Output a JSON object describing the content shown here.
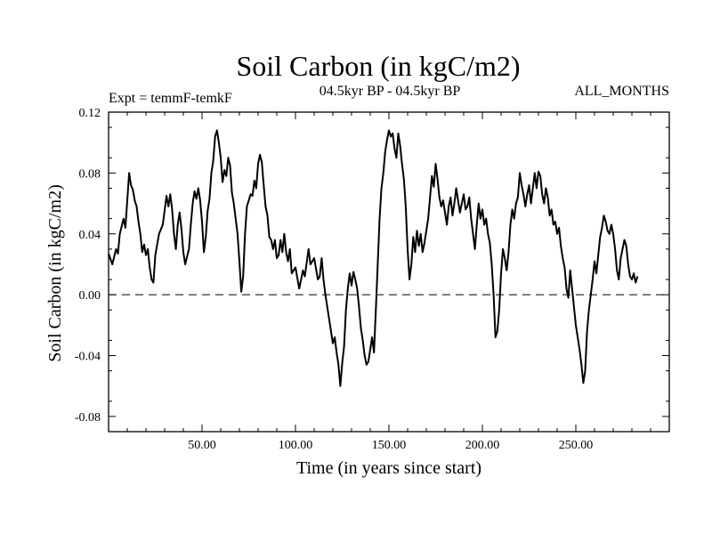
{
  "chart_data": {
    "type": "line",
    "title": "Soil Carbon (in kgC/m2)",
    "subtitle": "04.5kyr BP - 04.5kyr BP",
    "left_label": "Expt = temmF-temkF",
    "right_label": "ALL_MONTHS",
    "xlabel": "Time (in years since start)",
    "ylabel": "Soil Carbon (in kgC/m2)",
    "xlim": [
      0,
      300
    ],
    "ylim": [
      -0.09,
      0.12
    ],
    "x_ticks": [
      50,
      100,
      150,
      200,
      250
    ],
    "x_tick_labels": [
      "50.00",
      "100.00",
      "150.00",
      "200.00",
      "250.00"
    ],
    "y_ticks": [
      -0.08,
      -0.04,
      0.0,
      0.04,
      0.08,
      0.12
    ],
    "y_tick_labels": [
      "-0.08",
      "-0.04",
      "0.00",
      "0.04",
      "0.08",
      "0.12"
    ],
    "reference_line": 0.0,
    "series": [
      {
        "name": "Soil Carbon",
        "points": [
          [
            0,
            0.027
          ],
          [
            2,
            0.02
          ],
          [
            4,
            0.03
          ],
          [
            5,
            0.027
          ],
          [
            6,
            0.04
          ],
          [
            8,
            0.05
          ],
          [
            9,
            0.044
          ],
          [
            10,
            0.062
          ],
          [
            11,
            0.08
          ],
          [
            12,
            0.072
          ],
          [
            13,
            0.069
          ],
          [
            14,
            0.062
          ],
          [
            15,
            0.058
          ],
          [
            16,
            0.048
          ],
          [
            17,
            0.04
          ],
          [
            18,
            0.028
          ],
          [
            19,
            0.033
          ],
          [
            20,
            0.026
          ],
          [
            21,
            0.03
          ],
          [
            22,
            0.018
          ],
          [
            23,
            0.01
          ],
          [
            24,
            0.008
          ],
          [
            25,
            0.026
          ],
          [
            27,
            0.04
          ],
          [
            29,
            0.046
          ],
          [
            31,
            0.065
          ],
          [
            32,
            0.058
          ],
          [
            33,
            0.066
          ],
          [
            34,
            0.056
          ],
          [
            35,
            0.04
          ],
          [
            36,
            0.03
          ],
          [
            37,
            0.046
          ],
          [
            38,
            0.054
          ],
          [
            39,
            0.043
          ],
          [
            40,
            0.028
          ],
          [
            41,
            0.02
          ],
          [
            42,
            0.025
          ],
          [
            43,
            0.03
          ],
          [
            44,
            0.046
          ],
          [
            45,
            0.06
          ],
          [
            46,
            0.068
          ],
          [
            47,
            0.063
          ],
          [
            48,
            0.07
          ],
          [
            49,
            0.062
          ],
          [
            50,
            0.048
          ],
          [
            51,
            0.028
          ],
          [
            52,
            0.038
          ],
          [
            53,
            0.055
          ],
          [
            54,
            0.063
          ],
          [
            55,
            0.08
          ],
          [
            56,
            0.088
          ],
          [
            57,
            0.104
          ],
          [
            58,
            0.108
          ],
          [
            59,
            0.1
          ],
          [
            60,
            0.09
          ],
          [
            61,
            0.074
          ],
          [
            62,
            0.082
          ],
          [
            63,
            0.078
          ],
          [
            64,
            0.09
          ],
          [
            65,
            0.085
          ],
          [
            66,
            0.067
          ],
          [
            67,
            0.06
          ],
          [
            68,
            0.05
          ],
          [
            69,
            0.04
          ],
          [
            70,
            0.022
          ],
          [
            71,
            0.002
          ],
          [
            72,
            0.012
          ],
          [
            73,
            0.04
          ],
          [
            74,
            0.058
          ],
          [
            75,
            0.062
          ],
          [
            76,
            0.066
          ],
          [
            77,
            0.065
          ],
          [
            78,
            0.075
          ],
          [
            79,
            0.07
          ],
          [
            80,
            0.086
          ],
          [
            81,
            0.092
          ],
          [
            82,
            0.087
          ],
          [
            83,
            0.072
          ],
          [
            84,
            0.058
          ],
          [
            85,
            0.052
          ],
          [
            86,
            0.038
          ],
          [
            87,
            0.036
          ],
          [
            88,
            0.03
          ],
          [
            89,
            0.036
          ],
          [
            90,
            0.024
          ],
          [
            91,
            0.026
          ],
          [
            92,
            0.036
          ],
          [
            93,
            0.028
          ],
          [
            94,
            0.04
          ],
          [
            95,
            0.028
          ],
          [
            96,
            0.022
          ],
          [
            97,
            0.03
          ],
          [
            98,
            0.014
          ],
          [
            99,
            0.016
          ],
          [
            100,
            0.018
          ],
          [
            102,
            0.004
          ],
          [
            104,
            0.016
          ],
          [
            105,
            0.012
          ],
          [
            107,
            0.03
          ],
          [
            108,
            0.02
          ],
          [
            110,
            0.024
          ],
          [
            112,
            0.01
          ],
          [
            113,
            0.012
          ],
          [
            114,
            0.024
          ],
          [
            115,
            0.01
          ],
          [
            116,
            0.0
          ],
          [
            117,
            -0.008
          ],
          [
            118,
            -0.016
          ],
          [
            119,
            -0.024
          ],
          [
            120,
            -0.032
          ],
          [
            121,
            -0.028
          ],
          [
            122,
            -0.038
          ],
          [
            123,
            -0.046
          ],
          [
            124,
            -0.06
          ],
          [
            125,
            -0.045
          ],
          [
            126,
            -0.034
          ],
          [
            127,
            -0.01
          ],
          [
            128,
            0.004
          ],
          [
            129,
            0.014
          ],
          [
            130,
            0.006
          ],
          [
            131,
            0.015
          ],
          [
            132,
            0.01
          ],
          [
            133,
            0.004
          ],
          [
            134,
            -0.008
          ],
          [
            135,
            -0.022
          ],
          [
            136,
            -0.03
          ],
          [
            137,
            -0.04
          ],
          [
            138,
            -0.046
          ],
          [
            139,
            -0.044
          ],
          [
            140,
            -0.036
          ],
          [
            141,
            -0.028
          ],
          [
            142,
            -0.038
          ],
          [
            143,
            -0.01
          ],
          [
            144,
            0.02
          ],
          [
            145,
            0.05
          ],
          [
            146,
            0.07
          ],
          [
            147,
            0.08
          ],
          [
            148,
            0.094
          ],
          [
            149,
            0.102
          ],
          [
            150,
            0.108
          ],
          [
            151,
            0.104
          ],
          [
            152,
            0.106
          ],
          [
            153,
            0.096
          ],
          [
            154,
            0.09
          ],
          [
            155,
            0.106
          ],
          [
            156,
            0.098
          ],
          [
            157,
            0.086
          ],
          [
            158,
            0.076
          ],
          [
            159,
            0.058
          ],
          [
            160,
            0.03
          ],
          [
            161,
            0.01
          ],
          [
            162,
            0.02
          ],
          [
            163,
            0.038
          ],
          [
            164,
            0.028
          ],
          [
            165,
            0.042
          ],
          [
            166,
            0.032
          ],
          [
            167,
            0.04
          ],
          [
            168,
            0.028
          ],
          [
            169,
            0.034
          ],
          [
            170,
            0.042
          ],
          [
            171,
            0.05
          ],
          [
            172,
            0.064
          ],
          [
            173,
            0.078
          ],
          [
            174,
            0.071
          ],
          [
            175,
            0.086
          ],
          [
            176,
            0.076
          ],
          [
            177,
            0.064
          ],
          [
            178,
            0.058
          ],
          [
            179,
            0.062
          ],
          [
            180,
            0.054
          ],
          [
            181,
            0.046
          ],
          [
            182,
            0.058
          ],
          [
            183,
            0.064
          ],
          [
            184,
            0.052
          ],
          [
            185,
            0.06
          ],
          [
            186,
            0.07
          ],
          [
            187,
            0.062
          ],
          [
            188,
            0.054
          ],
          [
            189,
            0.06
          ],
          [
            190,
            0.066
          ],
          [
            191,
            0.056
          ],
          [
            192,
            0.058
          ],
          [
            193,
            0.064
          ],
          [
            194,
            0.05
          ],
          [
            195,
            0.04
          ],
          [
            196,
            0.03
          ],
          [
            197,
            0.046
          ],
          [
            198,
            0.06
          ],
          [
            199,
            0.05
          ],
          [
            200,
            0.056
          ],
          [
            201,
            0.046
          ],
          [
            202,
            0.05
          ],
          [
            203,
            0.04
          ],
          [
            204,
            0.034
          ],
          [
            205,
            0.02
          ],
          [
            206,
            0.0
          ],
          [
            207,
            -0.028
          ],
          [
            208,
            -0.024
          ],
          [
            209,
            -0.01
          ],
          [
            210,
            0.014
          ],
          [
            211,
            0.03
          ],
          [
            212,
            0.024
          ],
          [
            213,
            0.016
          ],
          [
            214,
            0.028
          ],
          [
            215,
            0.046
          ],
          [
            216,
            0.056
          ],
          [
            217,
            0.05
          ],
          [
            218,
            0.06
          ],
          [
            219,
            0.064
          ],
          [
            220,
            0.08
          ],
          [
            221,
            0.072
          ],
          [
            222,
            0.066
          ],
          [
            223,
            0.058
          ],
          [
            224,
            0.066
          ],
          [
            225,
            0.072
          ],
          [
            226,
            0.06
          ],
          [
            227,
            0.07
          ],
          [
            228,
            0.08
          ],
          [
            229,
            0.07
          ],
          [
            230,
            0.081
          ],
          [
            231,
            0.078
          ],
          [
            232,
            0.066
          ],
          [
            233,
            0.06
          ],
          [
            234,
            0.07
          ],
          [
            235,
            0.064
          ],
          [
            236,
            0.052
          ],
          [
            237,
            0.056
          ],
          [
            238,
            0.046
          ],
          [
            239,
            0.048
          ],
          [
            240,
            0.04
          ],
          [
            241,
            0.044
          ],
          [
            242,
            0.032
          ],
          [
            243,
            0.024
          ],
          [
            244,
            0.018
          ],
          [
            245,
            0.004
          ],
          [
            246,
            -0.002
          ],
          [
            247,
            0.016
          ],
          [
            248,
            0.004
          ],
          [
            249,
            -0.008
          ],
          [
            250,
            -0.02
          ],
          [
            251,
            -0.028
          ],
          [
            252,
            -0.036
          ],
          [
            253,
            -0.046
          ],
          [
            254,
            -0.058
          ],
          [
            255,
            -0.05
          ],
          [
            256,
            -0.024
          ],
          [
            257,
            -0.01
          ],
          [
            258,
            0.0
          ],
          [
            259,
            0.01
          ],
          [
            260,
            0.022
          ],
          [
            261,
            0.014
          ],
          [
            262,
            0.026
          ],
          [
            263,
            0.038
          ],
          [
            264,
            0.044
          ],
          [
            265,
            0.052
          ],
          [
            266,
            0.048
          ],
          [
            267,
            0.042
          ],
          [
            268,
            0.04
          ],
          [
            269,
            0.046
          ],
          [
            270,
            0.04
          ],
          [
            271,
            0.03
          ],
          [
            272,
            0.016
          ],
          [
            273,
            0.01
          ],
          [
            274,
            0.024
          ],
          [
            275,
            0.03
          ],
          [
            276,
            0.036
          ],
          [
            277,
            0.032
          ],
          [
            278,
            0.02
          ],
          [
            279,
            0.012
          ],
          [
            280,
            0.01
          ],
          [
            281,
            0.014
          ],
          [
            282,
            0.008
          ],
          [
            283,
            0.012
          ]
        ]
      }
    ]
  }
}
